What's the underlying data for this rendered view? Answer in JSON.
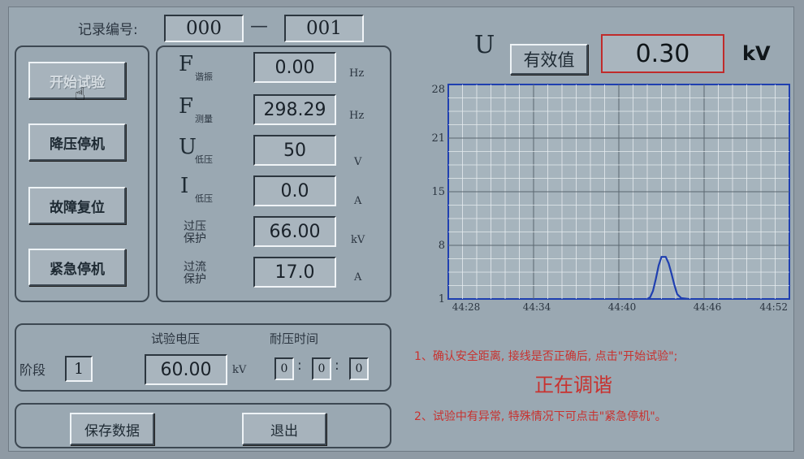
{
  "record": {
    "label": "记录编号:",
    "part1": "000",
    "dash": "—",
    "part2": "001"
  },
  "controls": {
    "start": "开始试验",
    "step_down": "降压停机",
    "reset": "故障复位",
    "emergency": "紧急停机"
  },
  "params": [
    {
      "symbol": "F",
      "sub": "谐振",
      "value": "0.00",
      "unit": "Hz"
    },
    {
      "symbol": "F",
      "sub": "测量",
      "value": "298.29",
      "unit": "Hz"
    },
    {
      "symbol": "U",
      "sub": "低压",
      "value": "50",
      "unit": "V"
    },
    {
      "symbol": "I",
      "sub": "低压",
      "value": "0.0",
      "unit": "A"
    },
    {
      "label_top": "过压",
      "label_bottom": "保护",
      "value": "66.00",
      "unit": "kV"
    },
    {
      "label_top": "过流",
      "label_bottom": "保护",
      "value": "17.0",
      "unit": "A"
    }
  ],
  "stage": {
    "label": "阶段",
    "value": "1",
    "voltage_label": "试验电压",
    "voltage": "60.00",
    "voltage_unit": "kV",
    "time_label": "耐压时间",
    "h": "0",
    "m": "0",
    "s": "0",
    "sep": ":"
  },
  "bottom": {
    "save": "保存数据",
    "exit": "退出"
  },
  "meter": {
    "symbol": "U",
    "mode": "有效值",
    "value": "0.30",
    "unit": "kV"
  },
  "chart_data": {
    "type": "line",
    "yticks": [
      "28",
      "21",
      "15",
      "8",
      "1"
    ],
    "xticks": [
      "44:28",
      "44:34",
      "44:40",
      "44:46",
      "44:52"
    ],
    "ylim": [
      1,
      28
    ],
    "grid": true,
    "series": [
      {
        "color": "#1f3fb0",
        "points": [
          [
            42.0,
            1
          ],
          [
            42.2,
            1.2
          ],
          [
            42.4,
            2.0
          ],
          [
            42.6,
            3.5
          ],
          [
            42.8,
            5.2
          ],
          [
            43.0,
            6.3
          ],
          [
            43.3,
            6.3
          ],
          [
            43.5,
            5.5
          ],
          [
            43.7,
            4.2
          ],
          [
            43.9,
            2.8
          ],
          [
            44.1,
            1.6
          ],
          [
            44.4,
            1.1
          ],
          [
            44.9,
            1
          ]
        ]
      }
    ]
  },
  "notes": {
    "line1": "1、确认安全距离, 接线是否正确后, 点击\"开始试验\";",
    "status": "正在调谐",
    "line2": "2、试验中有异常, 特殊情况下可点击\"紧急停机\"。"
  }
}
